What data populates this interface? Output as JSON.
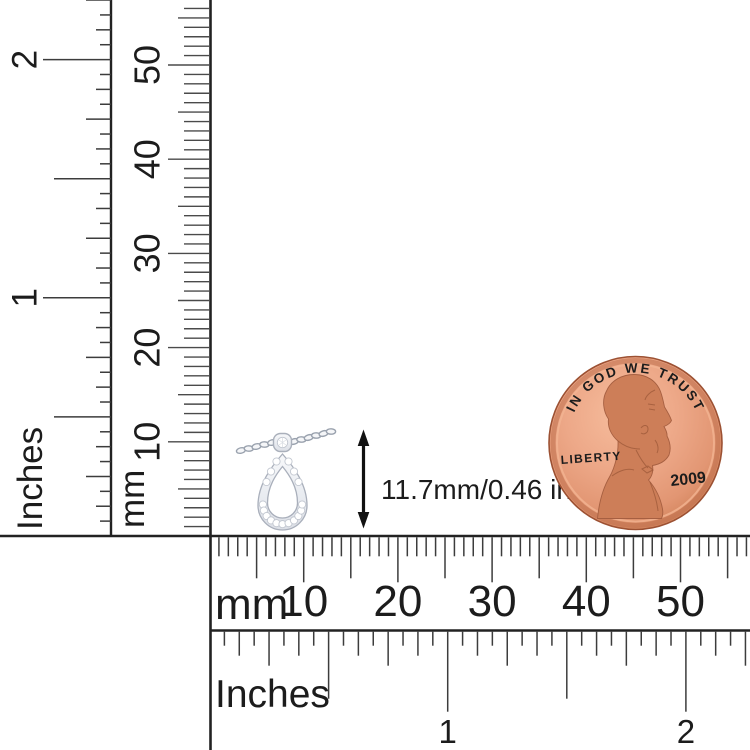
{
  "annotation": {
    "size_label": "11.7mm/0.46 in"
  },
  "rulers": {
    "vertical_inches": {
      "unit_label": "Inches",
      "numbers": [
        1,
        2
      ]
    },
    "vertical_mm": {
      "unit_label": "mm",
      "numbers": [
        10,
        20,
        30,
        40,
        50
      ]
    },
    "horizontal_mm": {
      "unit_label": "mm",
      "numbers": [
        10,
        20,
        30,
        40,
        50
      ]
    },
    "horizontal_inches": {
      "unit_label": "Inches",
      "numbers": [
        1,
        2
      ]
    }
  },
  "coin": {
    "motto": "IN GOD WE TRUST",
    "liberty_label": "LIBERTY",
    "year": "2009"
  },
  "colors": {
    "ink": "#1c1c1c",
    "tick": "#3c3c3c",
    "penny_field_light": "#f4b795",
    "penny_field": "#eba484",
    "penny_field_dark": "#d98a64",
    "penny_rim": "#b96a47",
    "penny_edge": "#9c5133",
    "penny_bust": "#cd7e58",
    "penny_bust_line": "#9c5838",
    "penny_text": "#8a4c30",
    "metal_fill": "#eef0f4",
    "metal_stroke": "#a9afbb",
    "diamond_stroke": "#c2c7d0"
  }
}
